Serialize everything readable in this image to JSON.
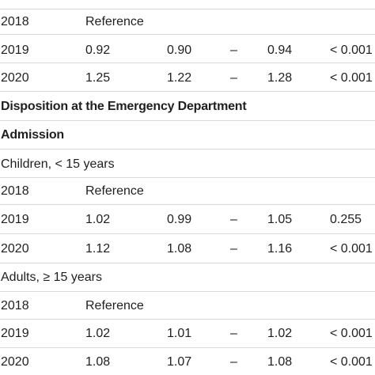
{
  "top_partial": [
    "",
    "",
    "",
    "",
    "",
    ""
  ],
  "block1": {
    "rows": [
      {
        "year": "2018",
        "or": "Reference",
        "lo": "",
        "dash": "",
        "hi": "",
        "p": ""
      },
      {
        "year": "2019",
        "or": "0.92",
        "lo": "0.90",
        "dash": "–",
        "hi": "0.94",
        "p": "< 0.001"
      },
      {
        "year": "2020",
        "or": "1.25",
        "lo": "1.22",
        "dash": "–",
        "hi": "1.28",
        "p": "< 0.001"
      }
    ]
  },
  "section_title": "Disposition at the Emergency Department",
  "subsection_title": "Admission",
  "children": {
    "label": "Children, < 15 years",
    "rows": [
      {
        "year": "2018",
        "or": "Reference",
        "lo": "",
        "dash": "",
        "hi": "",
        "p": ""
      },
      {
        "year": "2019",
        "or": "1.02",
        "lo": "0.99",
        "dash": "–",
        "hi": "1.05",
        "p": "0.255"
      },
      {
        "year": "2020",
        "or": "1.12",
        "lo": "1.08",
        "dash": "–",
        "hi": "1.16",
        "p": "< 0.001"
      }
    ]
  },
  "adults": {
    "label": "Adults, ≥ 15 years",
    "rows": [
      {
        "year": "2018",
        "or": "Reference",
        "lo": "",
        "dash": "",
        "hi": "",
        "p": ""
      },
      {
        "year": "2019",
        "or": "1.02",
        "lo": "1.01",
        "dash": "–",
        "hi": "1.02",
        "p": "< 0.001"
      },
      {
        "year": "2020",
        "or": "1.08",
        "lo": "1.07",
        "dash": "–",
        "hi": "1.08",
        "p": "< 0.001"
      }
    ]
  }
}
